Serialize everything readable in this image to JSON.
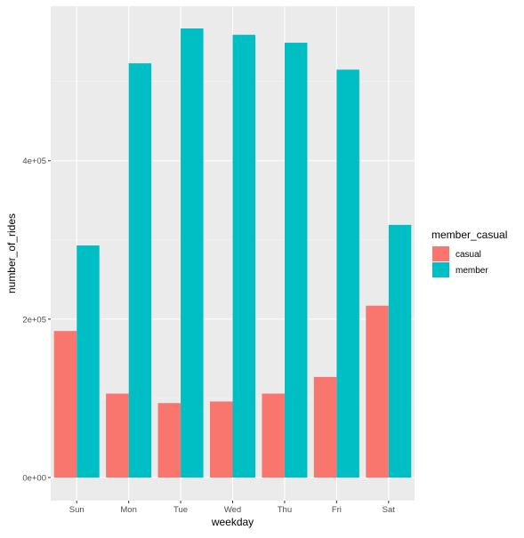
{
  "chart_data": {
    "type": "bar",
    "xlabel": "weekday",
    "ylabel": "number_of_rides",
    "categories": [
      "Sun",
      "Mon",
      "Tue",
      "Wed",
      "Thu",
      "Fri",
      "Sat"
    ],
    "series": [
      {
        "name": "casual",
        "color": "#F8766D",
        "values": [
          185000,
          106000,
          94000,
          96000,
          106000,
          127000,
          217000
        ]
      },
      {
        "name": "member",
        "color": "#00BFC4",
        "values": [
          293000,
          523000,
          567000,
          559000,
          549000,
          515000,
          319000
        ]
      }
    ],
    "ylim": [
      0,
      567000
    ],
    "yticks": [
      0,
      200000,
      400000
    ],
    "ytick_labels": [
      "0e+00",
      "2e+05",
      "4e+05"
    ],
    "legend": {
      "title": "member_casual",
      "position": "right"
    },
    "grid": true,
    "panel_background": "#EBEBEB"
  }
}
